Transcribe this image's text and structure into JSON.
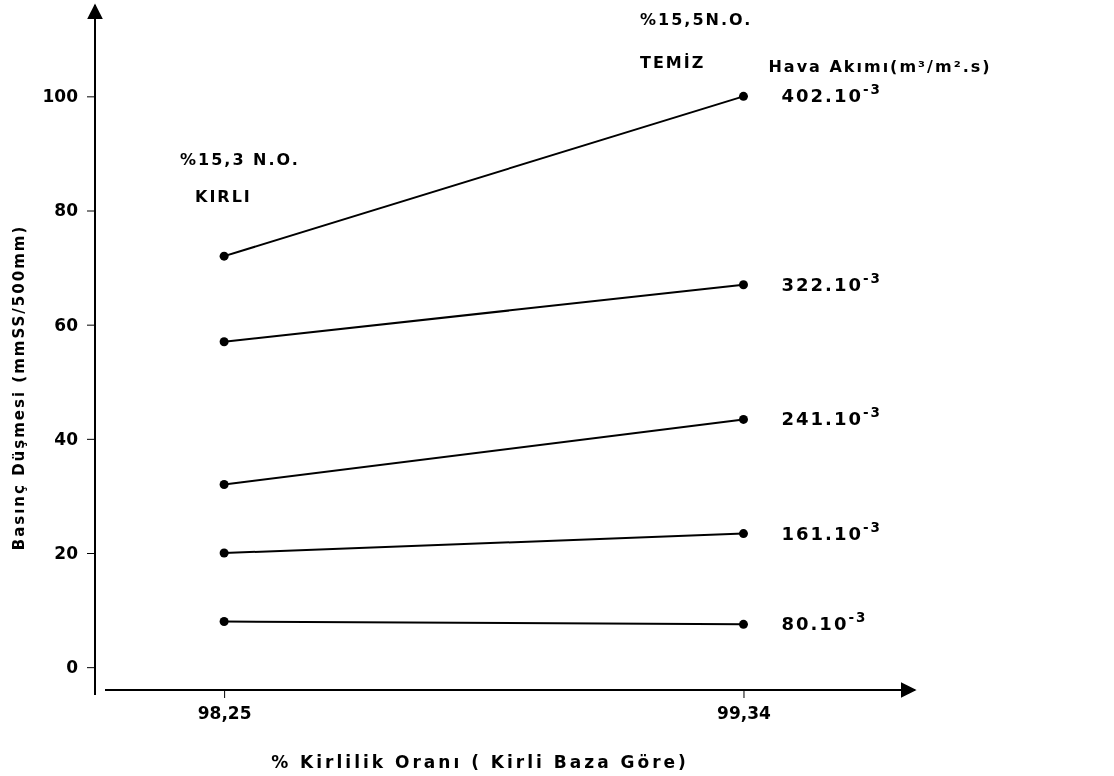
{
  "chart_data": {
    "type": "line",
    "xlabel": "% Kirlilik Oranı ( Kirli Baza Göre)",
    "ylabel": "Basınç Düşmesi (mmSS/500mm)",
    "legend_title": "Hava Akımı(m³/m².s)",
    "x": [
      98.25,
      99.34
    ],
    "xlim": [
      98.0,
      99.7
    ],
    "xticks": [
      {
        "value": 98.25,
        "label": "98,25"
      },
      {
        "value": 99.34,
        "label": "99,34"
      }
    ],
    "ylim": [
      -4,
      116
    ],
    "yticks": [
      0,
      20,
      40,
      60,
      80,
      100
    ],
    "grid": false,
    "marker": "circle",
    "line_style": "solid",
    "legend": "right",
    "series": [
      {
        "name": "402.10$^{-3}$",
        "color": "#000000",
        "values": [
          72,
          100
        ]
      },
      {
        "name": "322.10$^{-3}$",
        "color": "#000000",
        "values": [
          57,
          67
        ]
      },
      {
        "name": "241.10$^{-3}$",
        "color": "#000000",
        "values": [
          32,
          43.4
        ]
      },
      {
        "name": "161.10$^{-3}$",
        "color": "#000000",
        "values": [
          20,
          23.4
        ]
      },
      {
        "name": "80.10$^{-3}$",
        "color": "#000000",
        "values": [
          8,
          7.5
        ]
      }
    ],
    "annotations": [
      "%15,3 N.O.",
      "KIRLI",
      "%15,5N.O.",
      "TEMİZ"
    ]
  }
}
